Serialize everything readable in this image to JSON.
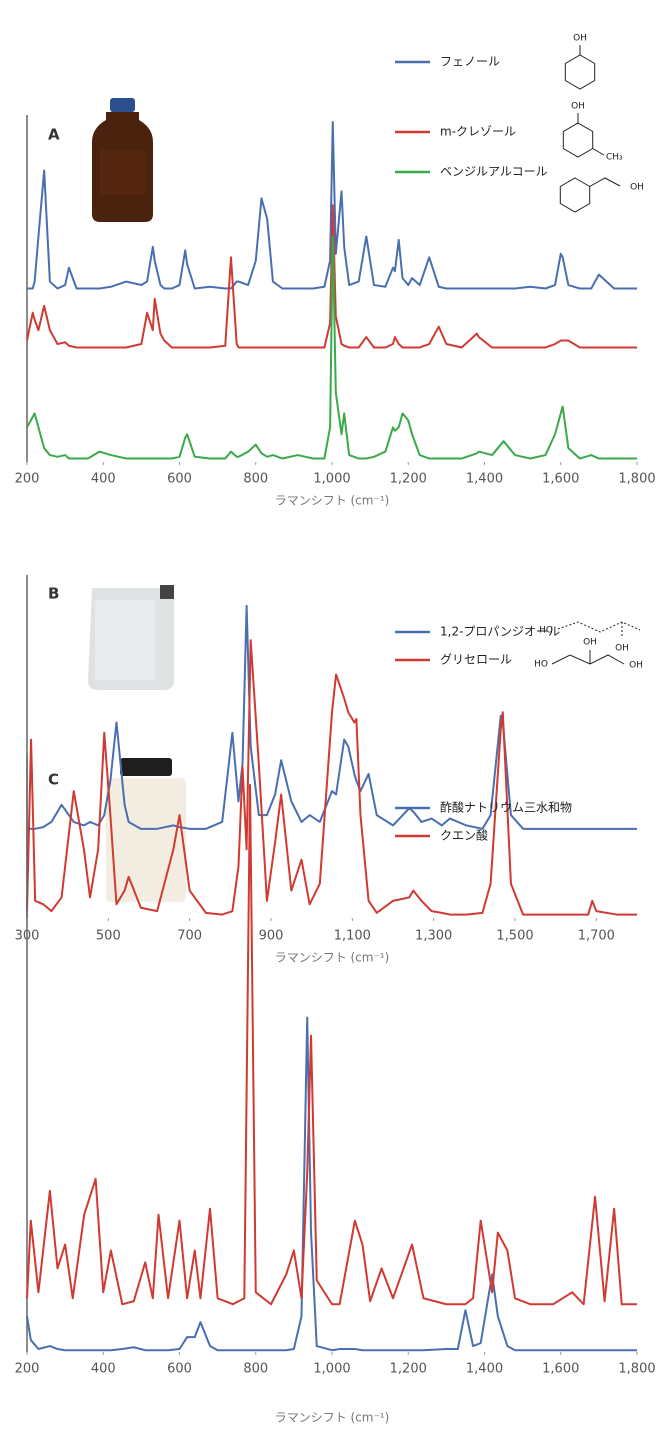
{
  "chart_data": [
    {
      "type": "line",
      "panel_label": "A",
      "x_label": "ラマンシフト (cm⁻¹)",
      "xlim": [
        200,
        1800
      ],
      "ylim": [
        0,
        100
      ],
      "xticks": [
        200,
        400,
        600,
        800,
        {
          "value": 1000,
          "label": "1,000"
        },
        {
          "value": 1200,
          "label": "1,200"
        },
        {
          "value": 1400,
          "label": "1,400"
        },
        {
          "value": 1600,
          "label": "1,600"
        },
        {
          "value": 1800,
          "label": "1,800"
        }
      ],
      "annotations": [
        "OH",
        "OH",
        "CH₃",
        "OH"
      ],
      "x": [
        200,
        215,
        220,
        230,
        245,
        260,
        280,
        300,
        310,
        330,
        360,
        390,
        420,
        460,
        500,
        515,
        530,
        535,
        550,
        560,
        580,
        600,
        615,
        620,
        640,
        680,
        720,
        735,
        750,
        755,
        780,
        800,
        815,
        830,
        845,
        870,
        910,
        950,
        980,
        995,
        1002,
        1010,
        1025,
        1032,
        1045,
        1070,
        1090,
        1110,
        1140,
        1160,
        1165,
        1175,
        1185,
        1200,
        1210,
        1230,
        1255,
        1280,
        1300,
        1340,
        1380,
        1385,
        1420,
        1450,
        1480,
        1520,
        1560,
        1585,
        1600,
        1605,
        1620,
        1650,
        1680,
        1700,
        1740,
        1800
      ],
      "series": [
        {
          "name": "フェノール",
          "color": "#4a6fb0",
          "values": [
            50,
            50,
            52,
            65,
            84,
            52,
            50,
            51,
            56,
            50,
            50,
            50,
            50.5,
            52,
            51,
            52,
            62,
            58,
            51,
            50,
            50,
            51,
            61,
            57,
            50,
            50.5,
            50,
            50,
            52,
            52,
            51,
            58,
            76,
            70,
            52,
            50,
            50,
            50,
            50.5,
            58,
            98,
            60,
            78,
            62,
            51,
            52,
            65,
            51,
            50.5,
            56,
            55,
            64,
            53,
            51,
            53,
            51,
            59,
            50.5,
            50,
            50,
            50,
            50,
            50,
            50,
            50,
            50.5,
            50,
            51,
            60,
            59,
            51,
            50,
            50,
            54,
            50,
            50
          ]
        },
        {
          "name": "m-クレゾール",
          "color": "#d03a33",
          "values": [
            35,
            43,
            41,
            38,
            45,
            38,
            34,
            34.5,
            33.5,
            33,
            33,
            33,
            33,
            33,
            34,
            43,
            38,
            47,
            37,
            35,
            33,
            33,
            33,
            33,
            33,
            33,
            33.5,
            59,
            34,
            33,
            33,
            33,
            33,
            33,
            33,
            33,
            33,
            33,
            33,
            40,
            74,
            42,
            34,
            33.5,
            33,
            33,
            36,
            33,
            33,
            34,
            36,
            34,
            33,
            33,
            33,
            33,
            34,
            39,
            34,
            33,
            37,
            36,
            33,
            33,
            33,
            33,
            33,
            34,
            35,
            35,
            35,
            33,
            33,
            33,
            33,
            33
          ]
        },
        {
          "name": "ベンジルアルコール",
          "color": "#3aaa4a",
          "values": [
            10,
            13,
            14,
            10,
            4,
            2,
            1.5,
            2,
            1,
            1,
            1,
            3,
            2,
            1,
            1,
            1,
            1,
            1,
            1,
            1,
            1,
            1.5,
            7,
            8,
            1.5,
            1,
            1,
            3,
            1.5,
            1.5,
            3,
            5,
            2.5,
            1.5,
            2,
            1,
            2,
            1,
            1,
            10,
            65,
            20,
            8,
            14,
            2,
            1,
            1,
            1.5,
            3,
            10,
            9,
            10,
            14,
            12,
            8,
            2,
            1,
            1,
            1,
            1,
            2.5,
            3,
            2,
            6,
            2,
            1,
            2,
            8,
            14,
            16,
            4,
            1,
            2,
            1,
            1,
            1
          ]
        }
      ]
    },
    {
      "type": "line",
      "panel_label": "B",
      "x_label": "ラマンシフト (cm⁻¹)",
      "xlim": [
        300,
        1800
      ],
      "ylim": [
        0,
        100
      ],
      "xticks": [
        300,
        500,
        700,
        900,
        {
          "value": 1100,
          "label": "1,100"
        },
        {
          "value": 1300,
          "label": "1,300"
        },
        {
          "value": 1500,
          "label": "1,500"
        },
        {
          "value": 1700,
          "label": "1,700"
        }
      ],
      "annotations": [
        "HO",
        "OH",
        "HO",
        "OH",
        "OH"
      ],
      "x": [
        300,
        310,
        320,
        340,
        360,
        385,
        415,
        440,
        455,
        475,
        490,
        505,
        520,
        540,
        550,
        580,
        620,
        660,
        675,
        700,
        740,
        780,
        805,
        820,
        830,
        840,
        850,
        870,
        890,
        910,
        925,
        950,
        975,
        995,
        1020,
        1050,
        1060,
        1080,
        1090,
        1105,
        1110,
        1120,
        1140,
        1160,
        1200,
        1240,
        1250,
        1270,
        1295,
        1320,
        1340,
        1380,
        1420,
        1440,
        1465,
        1470,
        1490,
        1520,
        1600,
        1680,
        1690,
        1700,
        1750,
        1800
      ],
      "series": [
        {
          "name": "1,2-プロパンジオール",
          "color": "#4a6fb0",
          "values": [
            26,
            26,
            26,
            26.5,
            28,
            33,
            28,
            27,
            28,
            27,
            30,
            40,
            57,
            33,
            28,
            26,
            26,
            27,
            26.5,
            26,
            26,
            28,
            54,
            34,
            45,
            91,
            50,
            30,
            30,
            36,
            46,
            34,
            28,
            30,
            28,
            37,
            36,
            52,
            50,
            42,
            40,
            37,
            42,
            30,
            27,
            32,
            31,
            28,
            29,
            27,
            29,
            27,
            26,
            30,
            59,
            57,
            30,
            26,
            26,
            26,
            26,
            26,
            26,
            26
          ]
        },
        {
          "name": "グリセロール",
          "color": "#d03a33",
          "values": [
            2,
            52,
            5,
            4,
            2,
            6,
            37,
            20,
            6,
            20,
            54,
            30,
            4,
            8,
            12,
            3,
            2,
            20,
            30,
            8,
            1.5,
            1,
            2,
            15,
            44,
            20,
            81,
            45,
            5,
            22,
            36,
            8,
            17,
            4,
            10,
            60,
            71,
            64,
            60,
            57,
            58,
            30,
            5,
            1.5,
            5,
            6,
            8,
            5,
            2,
            1.5,
            1,
            1,
            1.5,
            10,
            55,
            60,
            10,
            1,
            1,
            1,
            5,
            2,
            1,
            1
          ]
        }
      ]
    },
    {
      "type": "line",
      "panel_label": "C",
      "x_label": "ラマンシフト (cm⁻¹)",
      "xlim": [
        200,
        1800
      ],
      "ylim": [
        0,
        100
      ],
      "xticks": [
        200,
        400,
        600,
        800,
        {
          "value": 1000,
          "label": "1,000"
        },
        {
          "value": 1200,
          "label": "1,200"
        },
        {
          "value": 1400,
          "label": "1,400"
        },
        {
          "value": 1600,
          "label": "1,600"
        },
        {
          "value": 1800,
          "label": "1,800"
        }
      ],
      "x": [
        200,
        210,
        230,
        260,
        280,
        300,
        320,
        350,
        380,
        400,
        420,
        450,
        480,
        510,
        530,
        545,
        570,
        600,
        620,
        640,
        655,
        680,
        700,
        740,
        770,
        785,
        800,
        840,
        880,
        900,
        920,
        935,
        945,
        960,
        1000,
        1020,
        1060,
        1080,
        1100,
        1130,
        1160,
        1210,
        1240,
        1300,
        1330,
        1350,
        1370,
        1390,
        1420,
        1435,
        1460,
        1480,
        1520,
        1580,
        1630,
        1660,
        1690,
        1715,
        1740,
        1760,
        1800
      ],
      "series": [
        {
          "name": "酢酸ナトリウム三水和物",
          "color": "#4a6fb0",
          "values": [
            6,
            2,
            0.5,
            1,
            0.5,
            0.3,
            0.3,
            0.3,
            0.3,
            0.3,
            0.3,
            0.5,
            0.8,
            0.3,
            0.3,
            0.3,
            0.3,
            0.5,
            2.5,
            2.5,
            5,
            1,
            0.3,
            0.3,
            0.3,
            0.3,
            0.3,
            0.3,
            0.3,
            0.5,
            6,
            56,
            20,
            1,
            0.3,
            0.5,
            0.5,
            0.3,
            0.3,
            0.3,
            0.3,
            0.3,
            0.3,
            0.5,
            0.5,
            7,
            1,
            1.5,
            13,
            6,
            1,
            0.3,
            0.3,
            0.3,
            0.3,
            0.3,
            0.3,
            0.3,
            0.3,
            0.3,
            0.3
          ]
        },
        {
          "name": "クエン酸",
          "color": "#d03a33",
          "values": [
            9,
            22,
            10,
            27,
            14,
            18,
            9,
            23,
            29,
            10,
            17,
            8,
            8.5,
            15,
            9,
            23,
            9,
            22,
            9,
            17,
            9,
            24,
            9,
            8,
            9,
            95,
            10,
            8,
            13,
            17,
            9,
            30,
            53,
            12,
            8,
            8,
            22,
            18,
            8.5,
            14,
            9,
            18,
            9,
            8,
            8,
            8,
            9,
            22,
            10,
            20,
            17,
            9,
            8,
            8,
            10,
            8,
            26,
            8.5,
            24,
            8,
            8
          ]
        }
      ]
    }
  ]
}
